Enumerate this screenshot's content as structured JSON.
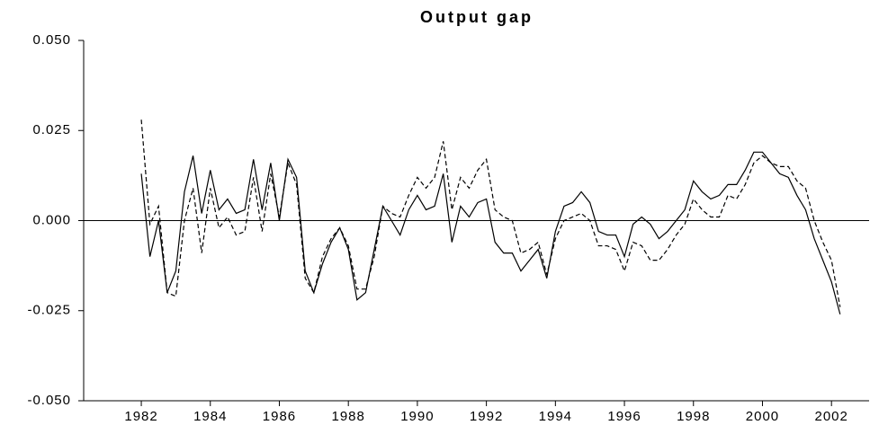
{
  "chart_data": {
    "type": "line",
    "title": "Output gap",
    "x": [
      1982,
      1982.25,
      1982.5,
      1982.75,
      1983,
      1983.25,
      1983.5,
      1983.75,
      1984,
      1984.25,
      1984.5,
      1984.75,
      1985,
      1985.25,
      1985.5,
      1985.75,
      1986,
      1986.25,
      1986.5,
      1986.75,
      1987,
      1987.25,
      1987.5,
      1987.75,
      1988,
      1988.25,
      1988.5,
      1988.75,
      1989,
      1989.25,
      1989.5,
      1989.75,
      1990,
      1990.25,
      1990.5,
      1990.75,
      1991,
      1991.25,
      1991.5,
      1991.75,
      1992,
      1992.25,
      1992.5,
      1992.75,
      1993,
      1993.25,
      1993.5,
      1993.75,
      1994,
      1994.25,
      1994.5,
      1994.75,
      1995,
      1995.25,
      1995.5,
      1995.75,
      1996,
      1996.25,
      1996.5,
      1996.75,
      1997,
      1997.25,
      1997.5,
      1997.75,
      1998,
      1998.25,
      1998.5,
      1998.75,
      1999,
      1999.25,
      1999.5,
      1999.75,
      2000,
      2000.25,
      2000.5,
      2000.75,
      2001,
      2001.25,
      2001.5,
      2001.75,
      2002,
      2002.25
    ],
    "series": [
      {
        "color": "#000000",
        "linestyle": "solid",
        "values": [
          0.013,
          -0.01,
          0.0,
          -0.02,
          -0.014,
          0.008,
          0.018,
          0.002,
          0.014,
          0.003,
          0.006,
          0.002,
          0.003,
          0.017,
          0.003,
          0.016,
          0.0,
          0.017,
          0.012,
          -0.014,
          -0.02,
          -0.012,
          -0.006,
          -0.002,
          -0.008,
          -0.022,
          -0.02,
          -0.008,
          0.004,
          0.0,
          -0.004,
          0.003,
          0.007,
          0.003,
          0.004,
          0.013,
          -0.006,
          0.004,
          0.001,
          0.005,
          0.006,
          -0.006,
          -0.009,
          -0.009,
          -0.014,
          -0.011,
          -0.008,
          -0.016,
          -0.003,
          0.004,
          0.005,
          0.008,
          0.005,
          -0.003,
          -0.004,
          -0.004,
          -0.01,
          -0.001,
          0.001,
          -0.001,
          -0.005,
          -0.003,
          0.0,
          0.003,
          0.011,
          0.008,
          0.006,
          0.007,
          0.01,
          0.01,
          0.014,
          0.019,
          0.019,
          0.016,
          0.013,
          0.012,
          0.007,
          0.003,
          -0.005,
          -0.011,
          -0.017,
          -0.026
        ]
      },
      {
        "color": "#000000",
        "linestyle": "dashed",
        "values": [
          0.028,
          -0.001,
          0.004,
          -0.02,
          -0.021,
          0.0,
          0.009,
          -0.009,
          0.009,
          -0.002,
          0.001,
          -0.004,
          -0.003,
          0.012,
          -0.003,
          0.013,
          0.001,
          0.016,
          0.01,
          -0.016,
          -0.02,
          -0.01,
          -0.005,
          -0.002,
          -0.007,
          -0.019,
          -0.019,
          -0.01,
          0.004,
          0.002,
          0.001,
          0.007,
          0.012,
          0.009,
          0.012,
          0.022,
          0.003,
          0.012,
          0.009,
          0.014,
          0.017,
          0.003,
          0.001,
          0.0,
          -0.009,
          -0.008,
          -0.006,
          -0.015,
          -0.005,
          0.0,
          0.001,
          0.002,
          0.0,
          -0.007,
          -0.007,
          -0.008,
          -0.014,
          -0.006,
          -0.007,
          -0.011,
          -0.011,
          -0.008,
          -0.004,
          -0.001,
          0.006,
          0.003,
          0.001,
          0.001,
          0.007,
          0.006,
          0.01,
          0.016,
          0.018,
          0.016,
          0.015,
          0.015,
          0.011,
          0.009,
          0.0,
          -0.006,
          -0.011,
          -0.024
        ]
      }
    ],
    "xlim": [
      1980.33,
      2003.09
    ],
    "xticks": [
      1982,
      1984,
      1986,
      1988,
      1990,
      1992,
      1994,
      1996,
      1998,
      2000,
      2002
    ],
    "ylim": [
      -0.05,
      0.05
    ],
    "yticks": [
      {
        "value": -0.05,
        "label": "-0.050"
      },
      {
        "value": -0.025,
        "label": "-0.025"
      },
      {
        "value": 0,
        "label": "0.000"
      },
      {
        "value": 0.025,
        "label": "0.025"
      },
      {
        "value": 0.05,
        "label": "0.050"
      }
    ],
    "zero_line": true
  }
}
